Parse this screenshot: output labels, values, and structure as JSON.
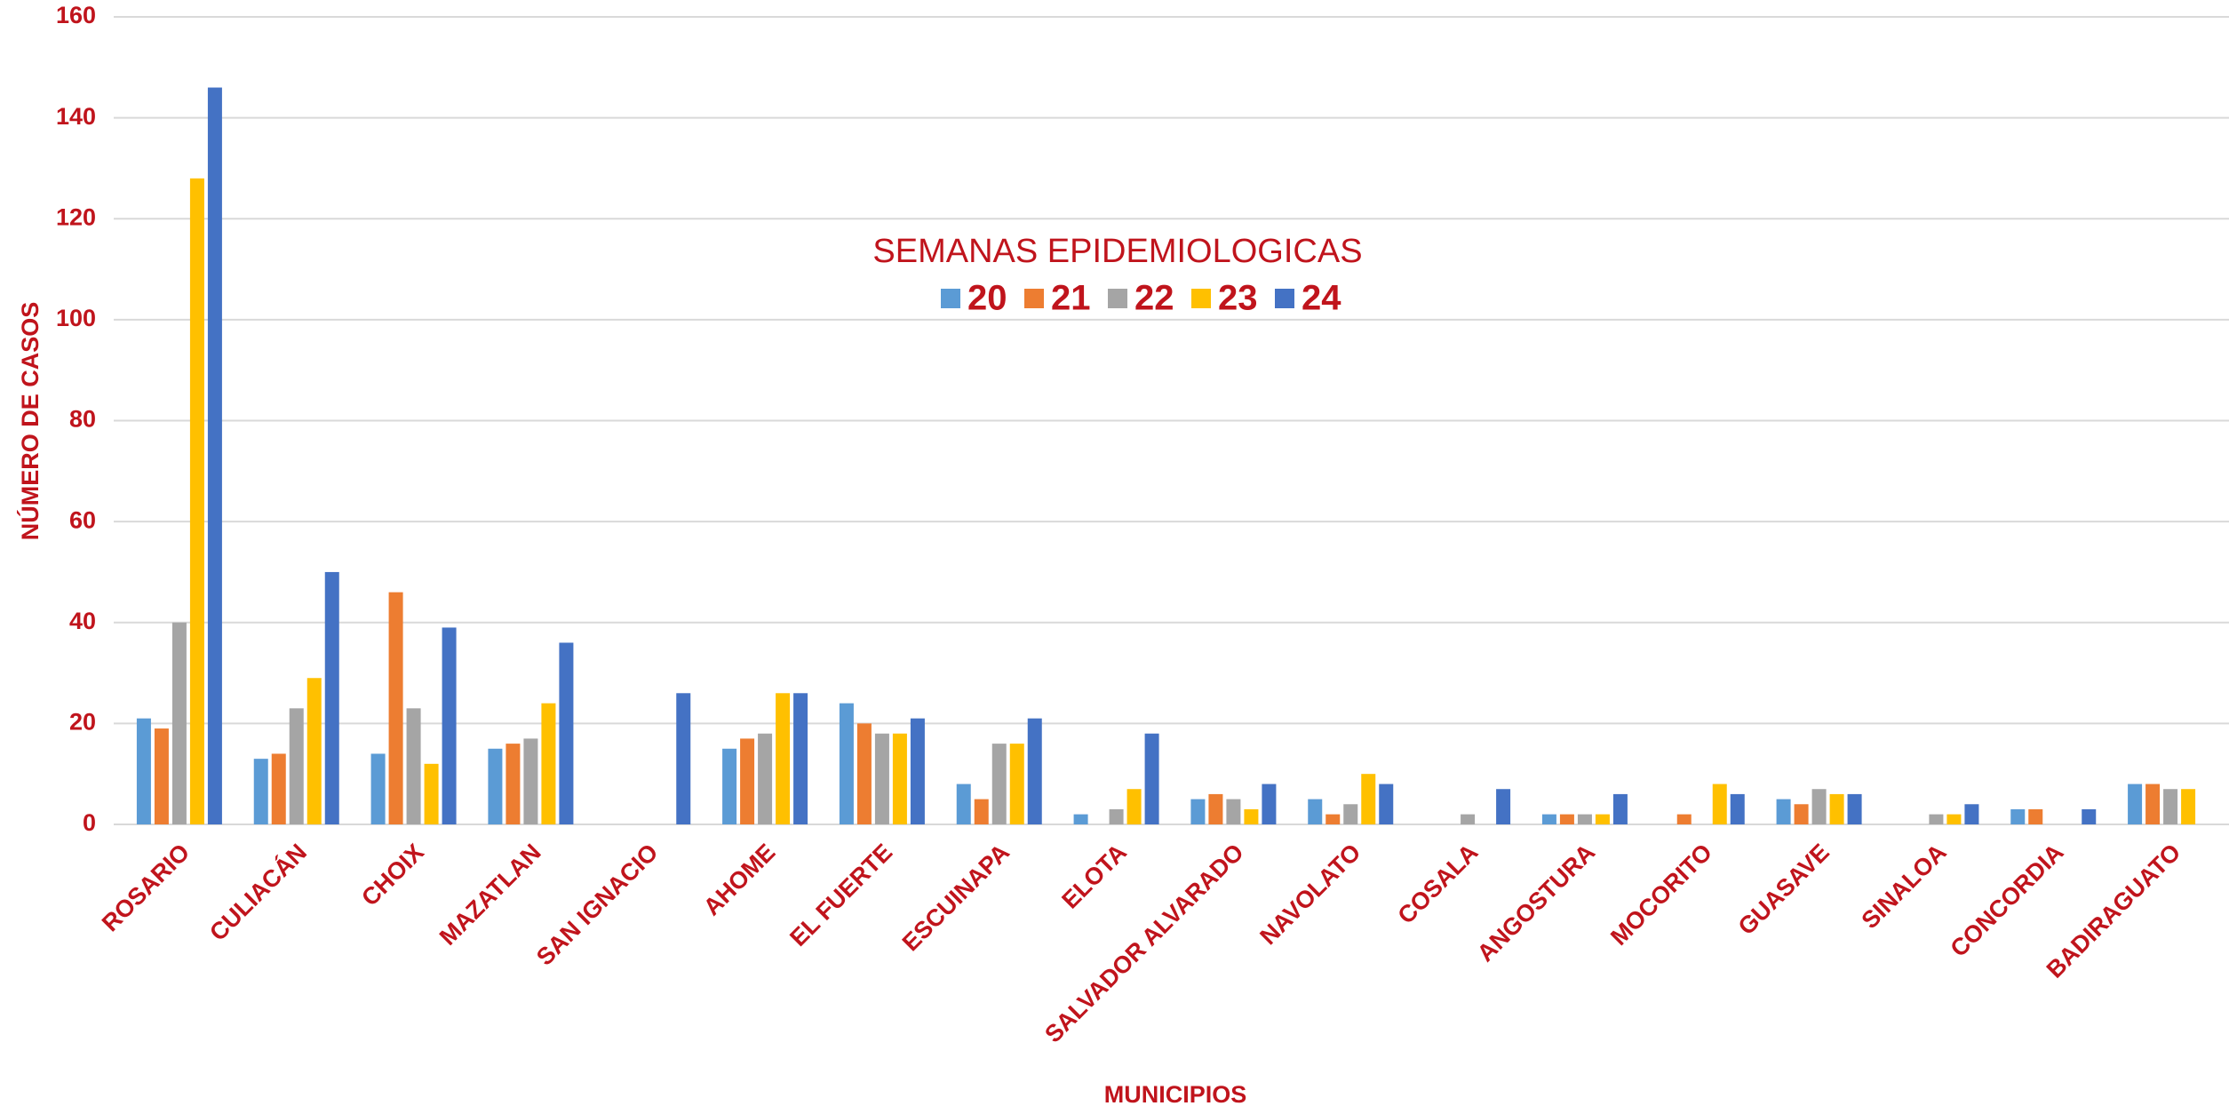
{
  "chart_data": {
    "type": "bar",
    "categories": [
      "ROSARIO",
      "CULIACÁN",
      "CHOIX",
      "MAZATLAN",
      "SAN IGNACIO",
      "AHOME",
      "EL FUERTE",
      "ESCUINAPA",
      "ELOTA",
      "SALVADOR ALVARADO",
      "NAVOLATO",
      "COSALA",
      "ANGOSTURA",
      "MOCORITO",
      "GUASAVE",
      "SINALOA",
      "CONCORDIA",
      "BADIRAGUATO"
    ],
    "series": [
      {
        "name": "20",
        "color": "#5b9bd5",
        "values": [
          21,
          13,
          14,
          15,
          0,
          15,
          24,
          8,
          2,
          5,
          5,
          0,
          2,
          0,
          5,
          0,
          3,
          8
        ]
      },
      {
        "name": "21",
        "color": "#ed7d31",
        "values": [
          19,
          14,
          46,
          16,
          0,
          17,
          20,
          5,
          0,
          6,
          2,
          0,
          2,
          2,
          4,
          0,
          3,
          8
        ]
      },
      {
        "name": "22",
        "color": "#a5a5a5",
        "values": [
          40,
          23,
          23,
          17,
          0,
          18,
          18,
          16,
          3,
          5,
          4,
          2,
          2,
          0,
          7,
          2,
          0,
          7
        ]
      },
      {
        "name": "23",
        "color": "#ffc000",
        "values": [
          128,
          29,
          12,
          24,
          0,
          26,
          18,
          16,
          7,
          3,
          10,
          0,
          2,
          8,
          6,
          2,
          0,
          7
        ]
      },
      {
        "name": "24",
        "color": "#4472c4",
        "values": [
          146,
          50,
          39,
          36,
          26,
          26,
          21,
          21,
          18,
          8,
          8,
          7,
          6,
          6,
          6,
          4,
          3,
          0
        ]
      }
    ],
    "legend_title": "SEMANAS EPIDEMIOLOGICAS",
    "xlabel": "MUNICIPIOS",
    "ylabel": "NÚMERO DE CASOS",
    "ylim": [
      0,
      160
    ],
    "yticks": [
      0,
      20,
      40,
      60,
      80,
      100,
      120,
      140,
      160
    ],
    "grid": true
  }
}
